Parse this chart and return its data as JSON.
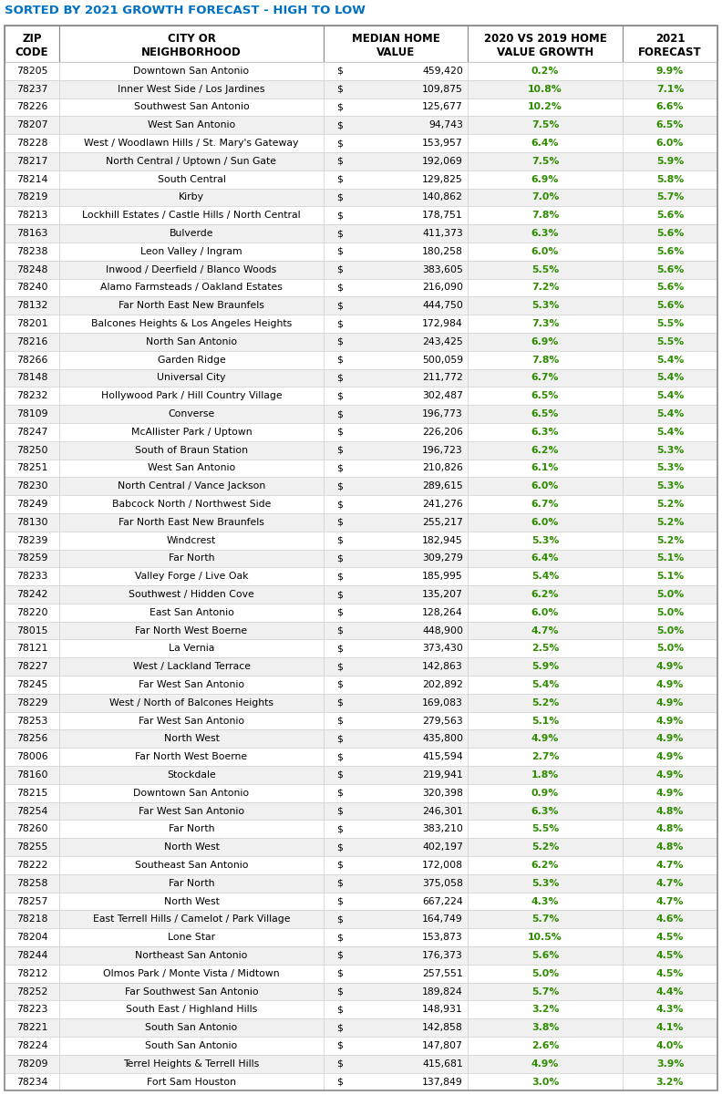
{
  "title": "SORTED BY 2021 GROWTH FORECAST - HIGH TO LOW",
  "title_color": "#0070C0",
  "headers_line1": [
    "ZIP",
    "CITY OR",
    "MEDIAN HOME",
    "2020 VS 2019 HOME",
    "2021"
  ],
  "headers_line2": [
    "CODE",
    "NEIGHBORHOOD",
    "VALUE",
    "VALUE GROWTH",
    "FORECAST"
  ],
  "rows": [
    [
      "78205",
      "Downtown San Antonio",
      "459,420",
      "0.2%",
      "9.9%"
    ],
    [
      "78237",
      "Inner West Side / Los Jardines",
      "109,875",
      "10.8%",
      "7.1%"
    ],
    [
      "78226",
      "Southwest San Antonio",
      "125,677",
      "10.2%",
      "6.6%"
    ],
    [
      "78207",
      "West San Antonio",
      "94,743",
      "7.5%",
      "6.5%"
    ],
    [
      "78228",
      "West / Woodlawn Hills / St. Mary's Gateway",
      "153,957",
      "6.4%",
      "6.0%"
    ],
    [
      "78217",
      "North Central / Uptown / Sun Gate",
      "192,069",
      "7.5%",
      "5.9%"
    ],
    [
      "78214",
      "South Central",
      "129,825",
      "6.9%",
      "5.8%"
    ],
    [
      "78219",
      "Kirby",
      "140,862",
      "7.0%",
      "5.7%"
    ],
    [
      "78213",
      "Lockhill Estates / Castle Hills / North Central",
      "178,751",
      "7.8%",
      "5.6%"
    ],
    [
      "78163",
      "Bulverde",
      "411,373",
      "6.3%",
      "5.6%"
    ],
    [
      "78238",
      "Leon Valley / Ingram",
      "180,258",
      "6.0%",
      "5.6%"
    ],
    [
      "78248",
      "Inwood / Deerfield / Blanco Woods",
      "383,605",
      "5.5%",
      "5.6%"
    ],
    [
      "78240",
      "Alamo Farmsteads / Oakland Estates",
      "216,090",
      "7.2%",
      "5.6%"
    ],
    [
      "78132",
      "Far North East New Braunfels",
      "444,750",
      "5.3%",
      "5.6%"
    ],
    [
      "78201",
      "Balcones Heights & Los Angeles Heights",
      "172,984",
      "7.3%",
      "5.5%"
    ],
    [
      "78216",
      "North San Antonio",
      "243,425",
      "6.9%",
      "5.5%"
    ],
    [
      "78266",
      "Garden Ridge",
      "500,059",
      "7.8%",
      "5.4%"
    ],
    [
      "78148",
      "Universal City",
      "211,772",
      "6.7%",
      "5.4%"
    ],
    [
      "78232",
      "Hollywood Park / Hill Country Village",
      "302,487",
      "6.5%",
      "5.4%"
    ],
    [
      "78109",
      "Converse",
      "196,773",
      "6.5%",
      "5.4%"
    ],
    [
      "78247",
      "McAllister Park / Uptown",
      "226,206",
      "6.3%",
      "5.4%"
    ],
    [
      "78250",
      "South of Braun Station",
      "196,723",
      "6.2%",
      "5.3%"
    ],
    [
      "78251",
      "West San Antonio",
      "210,826",
      "6.1%",
      "5.3%"
    ],
    [
      "78230",
      "North Central / Vance Jackson",
      "289,615",
      "6.0%",
      "5.3%"
    ],
    [
      "78249",
      "Babcock North / Northwest Side",
      "241,276",
      "6.7%",
      "5.2%"
    ],
    [
      "78130",
      "Far North East New Braunfels",
      "255,217",
      "6.0%",
      "5.2%"
    ],
    [
      "78239",
      "Windcrest",
      "182,945",
      "5.3%",
      "5.2%"
    ],
    [
      "78259",
      "Far North",
      "309,279",
      "6.4%",
      "5.1%"
    ],
    [
      "78233",
      "Valley Forge / Live Oak",
      "185,995",
      "5.4%",
      "5.1%"
    ],
    [
      "78242",
      "Southwest / Hidden Cove",
      "135,207",
      "6.2%",
      "5.0%"
    ],
    [
      "78220",
      "East San Antonio",
      "128,264",
      "6.0%",
      "5.0%"
    ],
    [
      "78015",
      "Far North West Boerne",
      "448,900",
      "4.7%",
      "5.0%"
    ],
    [
      "78121",
      "La Vernia",
      "373,430",
      "2.5%",
      "5.0%"
    ],
    [
      "78227",
      "West / Lackland Terrace",
      "142,863",
      "5.9%",
      "4.9%"
    ],
    [
      "78245",
      "Far West San Antonio",
      "202,892",
      "5.4%",
      "4.9%"
    ],
    [
      "78229",
      "West / North of Balcones Heights",
      "169,083",
      "5.2%",
      "4.9%"
    ],
    [
      "78253",
      "Far West San Antonio",
      "279,563",
      "5.1%",
      "4.9%"
    ],
    [
      "78256",
      "North West",
      "435,800",
      "4.9%",
      "4.9%"
    ],
    [
      "78006",
      "Far North West Boerne",
      "415,594",
      "2.7%",
      "4.9%"
    ],
    [
      "78160",
      "Stockdale",
      "219,941",
      "1.8%",
      "4.9%"
    ],
    [
      "78215",
      "Downtown San Antonio",
      "320,398",
      "0.9%",
      "4.9%"
    ],
    [
      "78254",
      "Far West San Antonio",
      "246,301",
      "6.3%",
      "4.8%"
    ],
    [
      "78260",
      "Far North",
      "383,210",
      "5.5%",
      "4.8%"
    ],
    [
      "78255",
      "North West",
      "402,197",
      "5.2%",
      "4.8%"
    ],
    [
      "78222",
      "Southeast San Antonio",
      "172,008",
      "6.2%",
      "4.7%"
    ],
    [
      "78258",
      "Far North",
      "375,058",
      "5.3%",
      "4.7%"
    ],
    [
      "78257",
      "North West",
      "667,224",
      "4.3%",
      "4.7%"
    ],
    [
      "78218",
      "East Terrell Hills / Camelot / Park Village",
      "164,749",
      "5.7%",
      "4.6%"
    ],
    [
      "78204",
      "Lone Star",
      "153,873",
      "10.5%",
      "4.5%"
    ],
    [
      "78244",
      "Northeast San Antonio",
      "176,373",
      "5.6%",
      "4.5%"
    ],
    [
      "78212",
      "Olmos Park / Monte Vista / Midtown",
      "257,551",
      "5.0%",
      "4.5%"
    ],
    [
      "78252",
      "Far Southwest San Antonio",
      "189,824",
      "5.7%",
      "4.4%"
    ],
    [
      "78223",
      "South East / Highland Hills",
      "148,931",
      "3.2%",
      "4.3%"
    ],
    [
      "78221",
      "South San Antonio",
      "142,858",
      "3.8%",
      "4.1%"
    ],
    [
      "78224",
      "South San Antonio",
      "147,807",
      "2.6%",
      "4.0%"
    ],
    [
      "78209",
      "Terrel Heights & Terrell Hills",
      "415,681",
      "4.9%",
      "3.9%"
    ],
    [
      "78234",
      "Fort Sam Houston",
      "137,849",
      "3.0%",
      "3.2%"
    ]
  ],
  "green_color": "#2E8B00",
  "border_color": "#AAAAAA",
  "font_size": 7.8,
  "header_font_size": 8.5,
  "title_font_size": 9.5
}
